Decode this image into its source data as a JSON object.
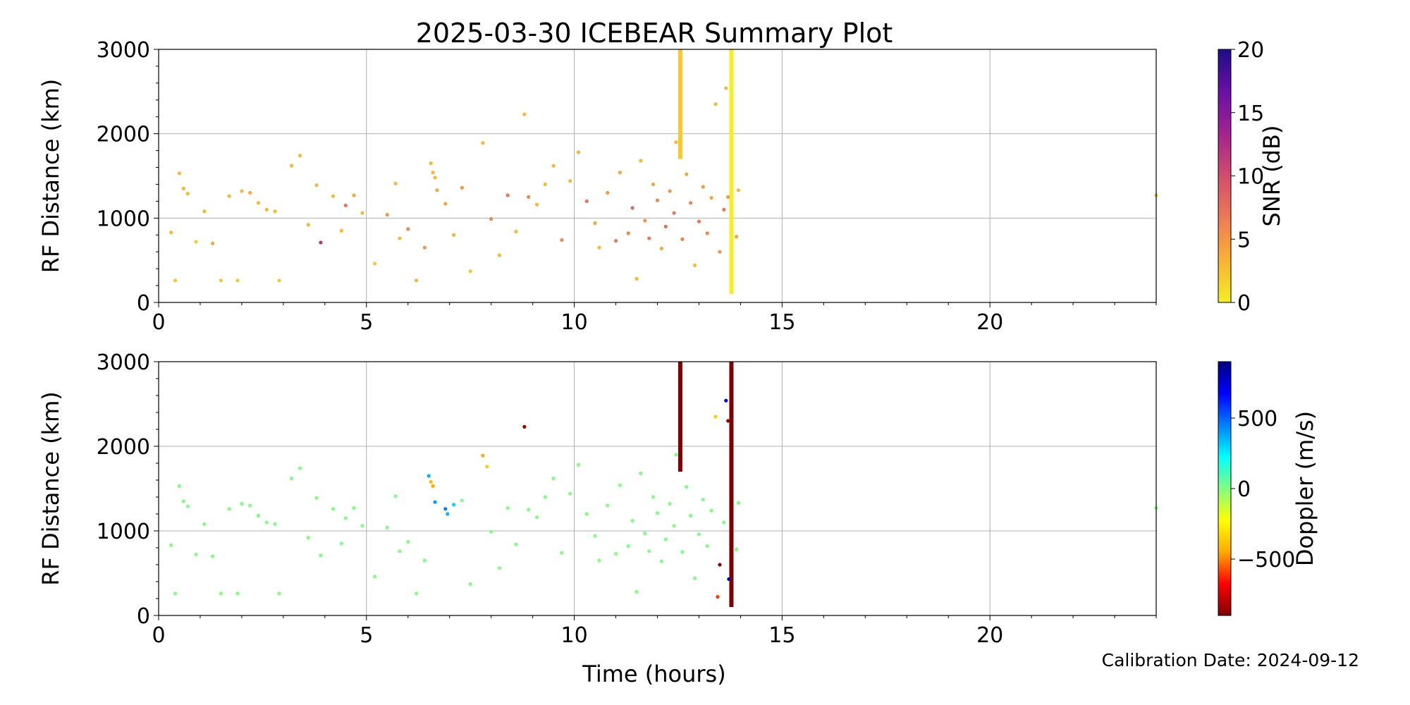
{
  "title": "2025-03-30 ICEBEAR Summary Plot",
  "calibration_text": "Calibration Date: 2024-09-12",
  "chart_data": [
    {
      "type": "scatter",
      "panel": "top",
      "color_by": "snr",
      "ylabel": "RF Distance (km)",
      "xlabel": "",
      "xlim": [
        0,
        24
      ],
      "ylim": [
        0,
        3000
      ],
      "xticks": [
        0,
        5,
        10,
        15,
        20
      ],
      "yticks": [
        0,
        1000,
        2000,
        3000
      ],
      "grid": true,
      "colorbar": {
        "label": "SNR (dB)",
        "range": [
          0,
          20
        ],
        "ticks": [
          0,
          5,
          10,
          15,
          20
        ],
        "colors": [
          "#f4ee25",
          "#f8b232",
          "#ee7a55",
          "#d14d6e",
          "#a3238f",
          "#6a0fa6",
          "#1d0c87"
        ]
      },
      "points": [
        [
          0.3,
          830,
          3
        ],
        [
          0.4,
          260,
          2
        ],
        [
          0.5,
          1530,
          3
        ],
        [
          0.6,
          1350,
          3
        ],
        [
          0.7,
          1290,
          3
        ],
        [
          0.9,
          720,
          2
        ],
        [
          1.1,
          1080,
          3
        ],
        [
          1.3,
          700,
          4
        ],
        [
          1.5,
          260,
          2
        ],
        [
          1.7,
          1260,
          3
        ],
        [
          1.9,
          260,
          2
        ],
        [
          2.0,
          1320,
          3
        ],
        [
          2.2,
          1300,
          4
        ],
        [
          2.4,
          1180,
          3
        ],
        [
          2.6,
          1100,
          3
        ],
        [
          2.8,
          1080,
          3
        ],
        [
          2.9,
          260,
          2
        ],
        [
          3.2,
          1620,
          3
        ],
        [
          3.4,
          1740,
          3
        ],
        [
          3.6,
          920,
          3
        ],
        [
          3.8,
          1390,
          3
        ],
        [
          3.9,
          710,
          12
        ],
        [
          4.2,
          1260,
          3
        ],
        [
          4.4,
          850,
          3
        ],
        [
          4.5,
          1150,
          7
        ],
        [
          4.7,
          1270,
          4
        ],
        [
          4.9,
          1060,
          3
        ],
        [
          5.2,
          460,
          2
        ],
        [
          5.5,
          1040,
          5
        ],
        [
          5.7,
          1410,
          3
        ],
        [
          5.8,
          760,
          3
        ],
        [
          6.0,
          870,
          6
        ],
        [
          6.2,
          260,
          3
        ],
        [
          6.4,
          650,
          5
        ],
        [
          6.55,
          1650,
          3
        ],
        [
          6.6,
          1540,
          3
        ],
        [
          6.65,
          1480,
          3
        ],
        [
          6.7,
          1330,
          4
        ],
        [
          6.9,
          1170,
          4
        ],
        [
          7.1,
          800,
          3
        ],
        [
          7.3,
          1360,
          5
        ],
        [
          7.5,
          370,
          2
        ],
        [
          7.8,
          1890,
          3
        ],
        [
          8.0,
          990,
          6
        ],
        [
          8.2,
          560,
          3
        ],
        [
          8.4,
          1270,
          7
        ],
        [
          8.6,
          840,
          3
        ],
        [
          8.8,
          2230,
          3
        ],
        [
          8.9,
          1250,
          6
        ],
        [
          9.1,
          1160,
          3
        ],
        [
          9.3,
          1400,
          3
        ],
        [
          9.5,
          1620,
          3
        ],
        [
          9.7,
          740,
          6
        ],
        [
          9.9,
          1440,
          3
        ],
        [
          10.1,
          1780,
          3
        ],
        [
          10.3,
          1200,
          7
        ],
        [
          10.5,
          940,
          4
        ],
        [
          10.6,
          650,
          3
        ],
        [
          10.8,
          1300,
          5
        ],
        [
          11.0,
          730,
          7
        ],
        [
          11.1,
          1540,
          4
        ],
        [
          11.3,
          820,
          6
        ],
        [
          11.4,
          1120,
          8
        ],
        [
          11.5,
          280,
          3
        ],
        [
          11.6,
          1680,
          3
        ],
        [
          11.7,
          970,
          5
        ],
        [
          11.8,
          760,
          7
        ],
        [
          11.9,
          1400,
          4
        ],
        [
          12.0,
          1210,
          6
        ],
        [
          12.1,
          640,
          4
        ],
        [
          12.2,
          900,
          8
        ],
        [
          12.3,
          1320,
          5
        ],
        [
          12.4,
          1060,
          7
        ],
        [
          12.45,
          1900,
          3
        ],
        [
          12.6,
          750,
          6
        ],
        [
          12.7,
          1520,
          4
        ],
        [
          12.8,
          1180,
          6
        ],
        [
          12.9,
          440,
          3
        ],
        [
          13.0,
          960,
          7
        ],
        [
          13.1,
          1370,
          5
        ],
        [
          13.2,
          820,
          6
        ],
        [
          13.3,
          1240,
          4
        ],
        [
          13.4,
          2350,
          3
        ],
        [
          13.5,
          600,
          5
        ],
        [
          13.6,
          1100,
          7
        ],
        [
          13.65,
          2540,
          3
        ],
        [
          13.7,
          1250,
          5
        ],
        [
          13.9,
          780,
          4
        ],
        [
          13.95,
          1330,
          3
        ],
        [
          24.0,
          1270,
          3
        ]
      ],
      "streaks": [
        {
          "x": 12.55,
          "y_from": 1700,
          "y_to": 3000,
          "value": 2
        },
        {
          "x": 13.78,
          "y_from": 100,
          "y_to": 3000,
          "value": 0
        }
      ]
    },
    {
      "type": "scatter",
      "panel": "bottom",
      "color_by": "doppler",
      "ylabel": "RF Distance (km)",
      "xlabel": "Time (hours)",
      "xlim": [
        0,
        24
      ],
      "ylim": [
        0,
        3000
      ],
      "xticks": [
        0,
        5,
        10,
        15,
        20
      ],
      "yticks": [
        0,
        1000,
        2000,
        3000
      ],
      "grid": true,
      "colorbar": {
        "label": "Doppler (m/s)",
        "range": [
          -900,
          900
        ],
        "ticks": [
          -500,
          0,
          500
        ],
        "tick_labels": [
          "−500",
          "0",
          "500"
        ],
        "colors": [
          "#800000",
          "#ff0000",
          "#ffaa00",
          "#ffff00",
          "#80ff80",
          "#00ffff",
          "#0080ff",
          "#0000ff",
          "#000080"
        ]
      },
      "points": [
        [
          0.3,
          830,
          0
        ],
        [
          0.4,
          260,
          0
        ],
        [
          0.5,
          1530,
          0
        ],
        [
          0.6,
          1350,
          0
        ],
        [
          0.7,
          1290,
          0
        ],
        [
          0.9,
          720,
          0
        ],
        [
          1.1,
          1080,
          0
        ],
        [
          1.3,
          700,
          0
        ],
        [
          1.5,
          260,
          0
        ],
        [
          1.7,
          1260,
          0
        ],
        [
          1.9,
          260,
          0
        ],
        [
          2.0,
          1320,
          0
        ],
        [
          2.2,
          1300,
          0
        ],
        [
          2.4,
          1180,
          0
        ],
        [
          2.6,
          1100,
          0
        ],
        [
          2.8,
          1080,
          0
        ],
        [
          2.9,
          260,
          0
        ],
        [
          3.2,
          1620,
          0
        ],
        [
          3.4,
          1740,
          0
        ],
        [
          3.6,
          920,
          0
        ],
        [
          3.8,
          1390,
          0
        ],
        [
          3.9,
          710,
          0
        ],
        [
          4.2,
          1260,
          0
        ],
        [
          4.4,
          850,
          0
        ],
        [
          4.5,
          1150,
          0
        ],
        [
          4.7,
          1270,
          0
        ],
        [
          4.9,
          1060,
          0
        ],
        [
          5.2,
          460,
          0
        ],
        [
          5.5,
          1040,
          0
        ],
        [
          5.7,
          1410,
          0
        ],
        [
          5.8,
          760,
          0
        ],
        [
          6.0,
          870,
          0
        ],
        [
          6.2,
          260,
          0
        ],
        [
          6.4,
          650,
          0
        ],
        [
          6.5,
          1650,
          350
        ],
        [
          6.55,
          1580,
          -400
        ],
        [
          6.6,
          1530,
          -450
        ],
        [
          6.65,
          1340,
          400
        ],
        [
          6.9,
          1260,
          450
        ],
        [
          6.95,
          1200,
          350
        ],
        [
          7.1,
          1310,
          300
        ],
        [
          7.3,
          1360,
          0
        ],
        [
          7.5,
          370,
          0
        ],
        [
          7.8,
          1890,
          -450
        ],
        [
          7.9,
          1760,
          -350
        ],
        [
          8.0,
          990,
          0
        ],
        [
          8.2,
          560,
          0
        ],
        [
          8.4,
          1270,
          0
        ],
        [
          8.6,
          840,
          0
        ],
        [
          8.8,
          2230,
          -850
        ],
        [
          8.9,
          1250,
          0
        ],
        [
          9.1,
          1160,
          0
        ],
        [
          9.3,
          1400,
          0
        ],
        [
          9.5,
          1620,
          0
        ],
        [
          9.7,
          740,
          0
        ],
        [
          9.9,
          1440,
          0
        ],
        [
          10.1,
          1780,
          0
        ],
        [
          10.3,
          1200,
          0
        ],
        [
          10.5,
          940,
          0
        ],
        [
          10.6,
          650,
          0
        ],
        [
          10.8,
          1300,
          0
        ],
        [
          11.0,
          730,
          0
        ],
        [
          11.1,
          1540,
          0
        ],
        [
          11.3,
          820,
          0
        ],
        [
          11.4,
          1120,
          0
        ],
        [
          11.5,
          280,
          0
        ],
        [
          11.6,
          1680,
          0
        ],
        [
          11.7,
          970,
          0
        ],
        [
          11.8,
          760,
          0
        ],
        [
          11.9,
          1400,
          0
        ],
        [
          12.0,
          1210,
          0
        ],
        [
          12.1,
          640,
          0
        ],
        [
          12.2,
          900,
          0
        ],
        [
          12.3,
          1320,
          0
        ],
        [
          12.4,
          1060,
          0
        ],
        [
          12.45,
          1900,
          0
        ],
        [
          12.6,
          750,
          0
        ],
        [
          12.7,
          1520,
          0
        ],
        [
          12.8,
          1180,
          0
        ],
        [
          12.9,
          440,
          0
        ],
        [
          13.0,
          960,
          0
        ],
        [
          13.1,
          1370,
          0
        ],
        [
          13.2,
          820,
          0
        ],
        [
          13.3,
          1240,
          0
        ],
        [
          13.4,
          2350,
          -350
        ],
        [
          13.45,
          220,
          -600
        ],
        [
          13.5,
          600,
          -850
        ],
        [
          13.6,
          1100,
          0
        ],
        [
          13.65,
          2540,
          700
        ],
        [
          13.7,
          2300,
          -850
        ],
        [
          13.72,
          430,
          800
        ],
        [
          13.9,
          780,
          0
        ],
        [
          13.95,
          1330,
          0
        ],
        [
          24.0,
          1270,
          0
        ]
      ],
      "streaks": [
        {
          "x": 12.55,
          "y_from": 1700,
          "y_to": 3000,
          "value": -900
        },
        {
          "x": 13.78,
          "y_from": 100,
          "y_to": 3000,
          "value": -900
        }
      ]
    }
  ]
}
